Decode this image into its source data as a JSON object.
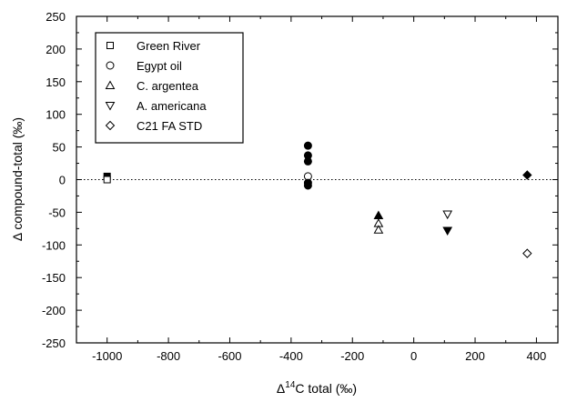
{
  "chart_data": {
    "type": "scatter",
    "xlabel": "Δ14C total (‰)",
    "xlabel_parts": {
      "delta": "Δ",
      "sup": "14",
      "rest": "C total (‰)"
    },
    "ylabel": "Δ compound-total (‰)",
    "xlim": [
      -1100,
      470
    ],
    "ylim": [
      -250,
      250
    ],
    "x_ticks": [
      -1000,
      -800,
      -600,
      -400,
      -200,
      0,
      200,
      400
    ],
    "y_ticks": [
      250,
      200,
      150,
      100,
      50,
      0,
      -50,
      -100,
      -150,
      -200,
      -250
    ],
    "x_tick_labels": [
      "-1000",
      "-800",
      "-600",
      "-400",
      "-200",
      "0",
      "200",
      "400"
    ],
    "y_tick_labels": [
      "250",
      "200",
      "150",
      "100",
      "50",
      "0",
      "-50",
      "-100",
      "-150",
      "-200",
      "-250"
    ],
    "zero_line": "dotted",
    "grid": false,
    "legend_position": "top-left",
    "series": [
      {
        "name": "Green River",
        "marker": "square",
        "points": [
          {
            "x": -1000,
            "y": 5,
            "fill": "solid"
          },
          {
            "x": -1000,
            "y": 0,
            "fill": "open"
          }
        ]
      },
      {
        "name": "Egypt oil",
        "marker": "circle",
        "points": [
          {
            "x": -345,
            "y": 52,
            "fill": "solid"
          },
          {
            "x": -345,
            "y": 37,
            "fill": "solid"
          },
          {
            "x": -345,
            "y": 28,
            "fill": "solid"
          },
          {
            "x": -345,
            "y": 5,
            "fill": "open"
          },
          {
            "x": -345,
            "y": -5,
            "fill": "solid"
          },
          {
            "x": -345,
            "y": -9,
            "fill": "solid"
          }
        ]
      },
      {
        "name": "C. argentea",
        "marker": "triangle-up",
        "points": [
          {
            "x": -115,
            "y": -55,
            "fill": "solid"
          },
          {
            "x": -115,
            "y": -67,
            "fill": "open"
          },
          {
            "x": -115,
            "y": -77,
            "fill": "open"
          }
        ]
      },
      {
        "name": "A. americana",
        "marker": "triangle-down",
        "points": [
          {
            "x": 110,
            "y": -53,
            "fill": "open"
          },
          {
            "x": 110,
            "y": -78,
            "fill": "solid"
          }
        ]
      },
      {
        "name": "C21 FA STD",
        "marker": "diamond",
        "points": [
          {
            "x": 370,
            "y": 7,
            "fill": "solid"
          },
          {
            "x": 370,
            "y": -113,
            "fill": "open"
          }
        ]
      }
    ]
  }
}
